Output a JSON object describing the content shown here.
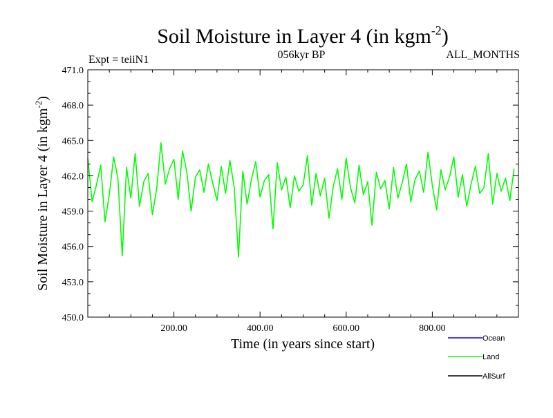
{
  "chart_data": {
    "type": "line",
    "title": "Soil Moisture in Layer 4 (in kgm",
    "title_sup": "-2",
    "title_close": ")",
    "subtitle_left": "Expt = teiiN1",
    "subtitle_center": "056kyr BP",
    "subtitle_right": "ALL_MONTHS",
    "xlabel": "Time (in years since start)",
    "ylabel": "Soil Moisture in Layer 4 (in kgm",
    "ylabel_sup": "-2",
    "ylabel_close": ")",
    "xlim": [
      0,
      1000
    ],
    "ylim": [
      450.0,
      471.0
    ],
    "x_ticks": [
      200,
      400,
      600,
      800
    ],
    "x_tick_labels": [
      "200.00",
      "400.00",
      "600.00",
      "800.00"
    ],
    "y_ticks": [
      450,
      453,
      456,
      459,
      462,
      465,
      468,
      471
    ],
    "y_tick_labels": [
      "450.0",
      "453.0",
      "456.0",
      "459.0",
      "462.0",
      "465.0",
      "468.0",
      "471.0"
    ],
    "grid": false,
    "legend_position": "bottom-right",
    "series": [
      {
        "name": "Ocean",
        "color": "#0000ff",
        "values": []
      },
      {
        "name": "Land",
        "color": "#00ff00",
        "x_start": 0,
        "x_step": 10,
        "values": [
          463.5,
          459.8,
          461.2,
          462.9,
          458.1,
          460.4,
          463.6,
          461.8,
          455.2,
          462.7,
          460.1,
          463.9,
          459.4,
          461.5,
          462.2,
          458.7,
          460.9,
          464.8,
          461.3,
          462.6,
          463.4,
          460.0,
          464.1,
          462.3,
          459.0,
          461.9,
          462.5,
          460.6,
          463.0,
          461.4,
          459.9,
          462.8,
          460.5,
          463.3,
          461.0,
          455.1,
          462.4,
          459.6,
          461.7,
          463.2,
          460.2,
          461.6,
          462.1,
          457.5,
          463.1,
          460.8,
          461.9,
          459.3,
          462.0,
          460.7,
          461.2,
          463.7,
          459.5,
          462.2,
          460.3,
          461.8,
          458.4,
          461.1,
          462.6,
          460.0,
          463.5,
          461.0,
          459.7,
          462.9,
          460.4,
          461.5,
          457.8,
          462.3,
          460.9,
          461.6,
          459.2,
          462.7,
          460.1,
          461.4,
          463.0,
          459.8,
          461.7,
          462.4,
          460.6,
          464.0,
          461.2,
          459.1,
          462.5,
          460.8,
          461.9,
          463.6,
          460.2,
          462.1,
          459.4,
          461.3,
          462.8,
          460.5,
          461.0,
          463.9,
          459.6,
          462.2,
          460.7,
          461.8,
          459.9,
          462.6
        ]
      },
      {
        "name": "AllSurf",
        "color": "#000000",
        "values": []
      }
    ]
  }
}
